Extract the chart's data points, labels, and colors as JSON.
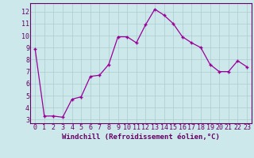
{
  "x": [
    0,
    1,
    2,
    3,
    4,
    5,
    6,
    7,
    8,
    9,
    10,
    11,
    12,
    13,
    14,
    15,
    16,
    17,
    18,
    19,
    20,
    21,
    22,
    23
  ],
  "y": [
    8.9,
    3.3,
    3.3,
    3.2,
    4.7,
    4.9,
    6.6,
    6.7,
    7.6,
    9.9,
    9.9,
    9.4,
    10.9,
    12.2,
    11.7,
    11.0,
    9.9,
    9.4,
    9.0,
    7.6,
    7.0,
    7.0,
    7.9,
    7.4
  ],
  "line_color": "#990099",
  "marker": "+",
  "marker_size": 3.5,
  "marker_edge_width": 1.0,
  "background_color": "#cce8ea",
  "grid_color": "#aacccc",
  "xlabel": "Windchill (Refroidissement éolien,°C)",
  "xlim": [
    -0.5,
    23.5
  ],
  "ylim": [
    2.7,
    12.7
  ],
  "yticks": [
    3,
    4,
    5,
    6,
    7,
    8,
    9,
    10,
    11,
    12
  ],
  "xticks": [
    0,
    1,
    2,
    3,
    4,
    5,
    6,
    7,
    8,
    9,
    10,
    11,
    12,
    13,
    14,
    15,
    16,
    17,
    18,
    19,
    20,
    21,
    22,
    23
  ],
  "axis_color": "#660066",
  "tick_font_size": 6.0,
  "xlabel_font_size": 6.5,
  "linewidth": 0.9
}
